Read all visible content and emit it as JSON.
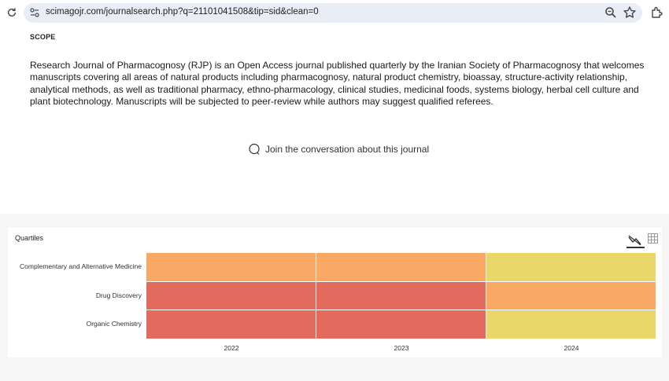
{
  "browser": {
    "url": "scimagojr.com/journalsearch.php?q=21101041508&tip=sid&clean=0"
  },
  "scope": {
    "title": "SCOPE",
    "text": "Research Journal of Pharmacognosy (RJP) is an Open Access journal published quarterly by the Iranian Society of Pharmacognosy that welcomes manuscripts covering all areas of natural products including pharmacognosy, natural product chemistry, bioassay, structure-activity relationship, analytical methods, as well as traditional pharmacy, ethno-pharmacology, clinical studies, medicinal foods, systems biology, herbal cell culture and plant biotechnology. Manuscripts will be subjected to peer-review while authors may suggest qualified referees."
  },
  "conversation": {
    "label": "Join the conversation about this journal"
  },
  "quartiles": {
    "title": "Quartiles",
    "colors": {
      "Q1": "#a4cf63",
      "Q2": "#e8d76b",
      "Q3": "#f9a964",
      "Q4": "#e26b5e"
    }
  },
  "chart_data": {
    "type": "heatmap",
    "title": "Quartiles",
    "years": [
      "2022",
      "2023",
      "2024"
    ],
    "categories": [
      "Complementary and Alternative Medicine",
      "Drug Discovery",
      "Organic Chemistry"
    ],
    "values": [
      [
        "Q3",
        "Q3",
        "Q2"
      ],
      [
        "Q4",
        "Q4",
        "Q3"
      ],
      [
        "Q4",
        "Q4",
        "Q2"
      ]
    ]
  }
}
